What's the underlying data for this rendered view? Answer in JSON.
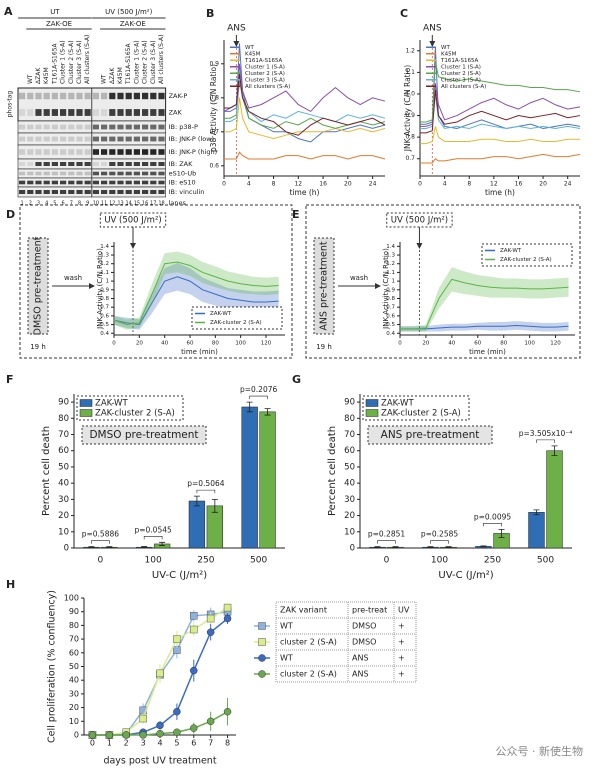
{
  "panel_a": {
    "panel": "A",
    "groups": [
      "UT",
      "UV (500 J/m²)"
    ],
    "overexpression": [
      "ZAK-OE",
      "ZAK-OE"
    ],
    "lanes": [
      "WT",
      "ΔZAK",
      "K45M",
      "T161A-S165A",
      "Cluster 1 (S-A)",
      "Cluster 2 (S-A)",
      "Cluster 3 (S-A)",
      "All clusters (S-A)",
      "WT",
      "ΔZAK",
      "K45M",
      "T161A-S165A",
      "Cluster 1 (S-A)",
      "Cluster 2 (S-A)",
      "Cluster 3 (S-A)",
      "All clusters (S-A)"
    ],
    "side_label": "phos-tag",
    "rows": [
      "ZAK-P",
      "ZAK",
      "IB: p38-P",
      "IB: JNK-P (low)",
      "IB: JNK-P (high)",
      "IB: ZAK",
      "eS10-Ub",
      "IB: eS10",
      "IB: vinculin"
    ],
    "lanes_label": "lanes",
    "lane_numbers": [
      "1",
      "2",
      "3",
      "4",
      "5",
      "6",
      "7",
      "8",
      "9",
      "10",
      "11",
      "12",
      "13",
      "14",
      "15",
      "16",
      "17",
      "18"
    ]
  },
  "watermark": "公众号 · 新使生物",
  "chart_data": [
    {
      "type": "line",
      "panel": "B",
      "ylabel": "p38 Activity (C/N Ratio)",
      "xlabel": "time (h)",
      "event_x": 2,
      "event_label": "ANS",
      "event_boxed": false,
      "legend": "upper left",
      "legend_frame": "none",
      "xlim": [
        0,
        26
      ],
      "ylim": [
        0.57,
        0.97
      ],
      "xticks": [
        0,
        4,
        8,
        12,
        16,
        20,
        24
      ],
      "yticks": [
        0.6,
        0.7,
        0.8,
        0.9
      ],
      "x": [
        0,
        1,
        2,
        2.5,
        3,
        4,
        6,
        8,
        10,
        12,
        14,
        16,
        18,
        20,
        22,
        24,
        26
      ],
      "series": [
        {
          "name": "WT",
          "color": "#4e74c4",
          "values": [
            0.76,
            0.76,
            0.77,
            0.96,
            0.82,
            0.74,
            0.72,
            0.7,
            0.7,
            0.68,
            0.67,
            0.7,
            0.7,
            0.71,
            0.72,
            0.71,
            0.72
          ]
        },
        {
          "name": "K45M",
          "color": "#e07b2b",
          "values": [
            0.62,
            0.62,
            0.62,
            0.64,
            0.63,
            0.62,
            0.62,
            0.62,
            0.63,
            0.63,
            0.62,
            0.63,
            0.63,
            0.62,
            0.63,
            0.63,
            0.62
          ]
        },
        {
          "name": "T161A-S165A",
          "color": "#e3b92f",
          "values": [
            0.7,
            0.7,
            0.71,
            0.8,
            0.74,
            0.7,
            0.69,
            0.68,
            0.69,
            0.7,
            0.7,
            0.7,
            0.71,
            0.7,
            0.71,
            0.7,
            0.71
          ]
        },
        {
          "name": "Cluster 1 (S-A)",
          "color": "#8a4fa8",
          "values": [
            0.76,
            0.77,
            0.78,
            0.9,
            0.82,
            0.77,
            0.78,
            0.8,
            0.82,
            0.78,
            0.76,
            0.8,
            0.83,
            0.8,
            0.78,
            0.8,
            0.79
          ]
        },
        {
          "name": "Cluster 2 (S-A)",
          "color": "#5aa64a",
          "values": [
            0.74,
            0.74,
            0.75,
            0.85,
            0.8,
            0.74,
            0.72,
            0.71,
            0.73,
            0.72,
            0.74,
            0.72,
            0.71,
            0.72,
            0.73,
            0.72,
            0.73
          ]
        },
        {
          "name": "Cluster 3 (S-A)",
          "color": "#5bb5d5",
          "values": [
            0.73,
            0.73,
            0.74,
            0.88,
            0.8,
            0.76,
            0.73,
            0.75,
            0.74,
            0.76,
            0.75,
            0.74,
            0.73,
            0.75,
            0.74,
            0.75,
            0.74
          ]
        },
        {
          "name": "All clusters (S-A)",
          "color": "#7a1f2a",
          "values": [
            0.77,
            0.77,
            0.78,
            0.87,
            0.8,
            0.76,
            0.74,
            0.73,
            0.7,
            0.69,
            0.72,
            0.74,
            0.73,
            0.72,
            0.73,
            0.74,
            0.72
          ]
        }
      ]
    },
    {
      "type": "line",
      "panel": "C",
      "ylabel": "JNK Activity (C/N Ratio)",
      "xlabel": "time (h)",
      "event_x": 2,
      "event_label": "ANS",
      "event_boxed": false,
      "legend": "upper left",
      "legend_frame": "none",
      "xlim": [
        0,
        26
      ],
      "ylim": [
        0.62,
        1.25
      ],
      "xticks": [
        0,
        4,
        8,
        12,
        16,
        20,
        24
      ],
      "yticks": [
        0.7,
        0.8,
        0.9,
        {
          "value": 1,
          "label": "1.0"
        },
        1.1,
        1.2
      ],
      "x": [
        0,
        1,
        2,
        2.5,
        3,
        4,
        6,
        8,
        10,
        12,
        14,
        16,
        18,
        20,
        22,
        24,
        26
      ],
      "series": [
        {
          "name": "WT",
          "color": "#4e74c4",
          "values": [
            0.86,
            0.86,
            0.87,
            1.22,
            0.9,
            0.85,
            0.84,
            0.86,
            0.88,
            0.86,
            0.84,
            0.85,
            0.86,
            0.84,
            0.85,
            0.86,
            0.85
          ]
        },
        {
          "name": "K45M",
          "color": "#e07b2b",
          "values": [
            0.68,
            0.68,
            0.68,
            0.7,
            0.69,
            0.69,
            0.7,
            0.7,
            0.7,
            0.71,
            0.71,
            0.7,
            0.71,
            0.72,
            0.71,
            0.71,
            0.72
          ]
        },
        {
          "name": "T161A-S165A",
          "color": "#e3b92f",
          "values": [
            0.77,
            0.77,
            0.78,
            0.85,
            0.8,
            0.78,
            0.78,
            0.78,
            0.79,
            0.79,
            0.78,
            0.78,
            0.79,
            0.78,
            0.78,
            0.79,
            0.79
          ]
        },
        {
          "name": "Cluster 1 (S-A)",
          "color": "#8a4fa8",
          "values": [
            0.85,
            0.85,
            0.86,
            1.05,
            0.95,
            0.88,
            0.9,
            0.93,
            0.96,
            0.98,
            0.95,
            0.93,
            0.96,
            0.98,
            0.95,
            0.93,
            0.94
          ]
        },
        {
          "name": "Cluster 2 (S-A)",
          "color": "#5aa64a",
          "values": [
            0.87,
            0.87,
            0.88,
            1.15,
            1.08,
            1.07,
            1.06,
            1.07,
            1.06,
            1.05,
            1.04,
            1.04,
            1.03,
            1.03,
            1.02,
            1.02,
            1.01
          ]
        },
        {
          "name": "Cluster 3 (S-A)",
          "color": "#5bb5d5",
          "values": [
            0.84,
            0.84,
            0.85,
            1.0,
            0.88,
            0.84,
            0.85,
            0.84,
            0.86,
            0.85,
            0.84,
            0.85,
            0.84,
            0.85,
            0.84,
            0.85,
            0.84
          ]
        },
        {
          "name": "All clusters (S-A)",
          "color": "#7a1f2a",
          "values": [
            0.82,
            0.82,
            0.83,
            1.02,
            0.9,
            0.86,
            0.87,
            0.9,
            0.92,
            0.9,
            0.88,
            0.9,
            0.89,
            0.9,
            0.91,
            0.89,
            0.9
          ]
        }
      ]
    },
    {
      "type": "line",
      "panel": "D",
      "ylabel": "JNK Activity (C/N Ratio)",
      "xlabel": "time (min)",
      "pretreatment": "DMSO pre-treatment",
      "wash_label": "wash",
      "duration": "19 h",
      "event_x": 15,
      "event_label": "UV (500 J/m²)",
      "event_boxed": true,
      "legend": "lower right",
      "legend_frame": "dashed",
      "xlim": [
        0,
        135
      ],
      "ylim": [
        0.38,
        1.45
      ],
      "xticks": [
        0,
        20,
        40,
        60,
        80,
        100,
        120
      ],
      "yticks": [
        0.4,
        0.5,
        0.6,
        0.7,
        0.8,
        0.9,
        1,
        1.1,
        1.2,
        1.3,
        1.4
      ],
      "x": [
        0,
        10,
        20,
        30,
        40,
        50,
        60,
        70,
        80,
        90,
        100,
        110,
        120,
        130
      ],
      "series": [
        {
          "name": "ZAK-WT",
          "color": "#3a6bc4",
          "values": [
            0.55,
            0.52,
            0.5,
            0.75,
            1.0,
            1.05,
            1.0,
            0.9,
            0.85,
            0.8,
            0.78,
            0.76,
            0.76,
            0.77
          ],
          "errors": [
            0.05,
            0.06,
            0.06,
            0.12,
            0.15,
            0.16,
            0.15,
            0.14,
            0.13,
            0.12,
            0.12,
            0.12,
            0.12,
            0.12
          ]
        },
        {
          "name": "ZAK-cluster 2 (S-A)",
          "color": "#5ab547",
          "values": [
            0.55,
            0.5,
            0.52,
            0.85,
            1.2,
            1.22,
            1.18,
            1.1,
            1.05,
            1.0,
            0.97,
            0.95,
            0.94,
            0.95
          ],
          "errors": [
            0.05,
            0.06,
            0.06,
            0.12,
            0.12,
            0.12,
            0.12,
            0.12,
            0.12,
            0.11,
            0.11,
            0.1,
            0.1,
            0.1
          ]
        }
      ]
    },
    {
      "type": "line",
      "panel": "E",
      "ylabel": "JNK Activity (C/N Ratio)",
      "xlabel": "time (min)",
      "pretreatment": "ANS pre-treatment",
      "wash_label": "wash",
      "duration": "19 h",
      "event_x": 15,
      "event_label": "UV (500 J/m²)",
      "event_boxed": true,
      "legend": "upper right",
      "legend_frame": "dashed",
      "xlim": [
        0,
        135
      ],
      "ylim": [
        0.38,
        1.45
      ],
      "xticks": [
        0,
        20,
        40,
        60,
        80,
        100,
        120
      ],
      "yticks": [
        0.4,
        0.5,
        0.6,
        0.7,
        0.8,
        0.9,
        1,
        1.1,
        1.2,
        1.3,
        1.4
      ],
      "x": [
        0,
        10,
        20,
        30,
        40,
        50,
        60,
        70,
        80,
        90,
        100,
        110,
        120,
        130
      ],
      "series": [
        {
          "name": "ZAK-WT",
          "color": "#3a6bc4",
          "values": [
            0.45,
            0.45,
            0.45,
            0.46,
            0.47,
            0.47,
            0.48,
            0.48,
            0.48,
            0.49,
            0.48,
            0.47,
            0.47,
            0.48
          ],
          "errors": [
            0.03,
            0.03,
            0.03,
            0.04,
            0.04,
            0.04,
            0.04,
            0.05,
            0.05,
            0.05,
            0.05,
            0.05,
            0.05,
            0.05
          ]
        },
        {
          "name": "ZAK-cluster 2 (S-A)",
          "color": "#5ab547",
          "values": [
            0.45,
            0.45,
            0.46,
            0.8,
            1.02,
            0.98,
            0.95,
            0.93,
            0.92,
            0.92,
            0.91,
            0.91,
            0.92,
            0.93
          ],
          "errors": [
            0.03,
            0.03,
            0.04,
            0.12,
            0.14,
            0.13,
            0.12,
            0.12,
            0.11,
            0.11,
            0.11,
            0.11,
            0.11,
            0.11
          ]
        }
      ]
    },
    {
      "type": "bar",
      "panel": "F",
      "ylabel": "Percent cell death",
      "xlabel": "UV-C (J/m²)",
      "annotation": "DMSO pre-treatment",
      "legend": "upper left",
      "legend_frame": "dashed",
      "categories": [
        "0",
        "100",
        "250",
        "500"
      ],
      "ylim": [
        0,
        95
      ],
      "yticks": [
        0,
        10,
        20,
        30,
        40,
        50,
        60,
        70,
        80,
        90
      ],
      "p_labels": [
        "p=0.5886",
        "p=0.0545",
        "p=0.5064",
        "p=0.2076"
      ],
      "series": [
        {
          "name": "ZAK-WT",
          "color": "#2f6db5",
          "values": [
            0.5,
            0.5,
            29,
            87
          ],
          "errors": [
            0.3,
            0.4,
            3,
            3
          ]
        },
        {
          "name": "ZAK-cluster 2 (S-A)",
          "color": "#6cb047",
          "values": [
            0.5,
            2.5,
            26,
            84
          ],
          "errors": [
            0.3,
            1,
            4,
            2
          ]
        }
      ]
    },
    {
      "type": "bar",
      "panel": "G",
      "ylabel": "Percent cell death",
      "xlabel": "UV-C (J/m²)",
      "annotation": "ANS pre-treatment",
      "legend": "upper left",
      "legend_frame": "dashed",
      "categories": [
        "0",
        "100",
        "250",
        "500"
      ],
      "ylim": [
        0,
        95
      ],
      "yticks": [
        0,
        10,
        20,
        30,
        40,
        50,
        60,
        70,
        80,
        90
      ],
      "p_labels": [
        "p=0.2851",
        "p=0.2585",
        "p=0.0095",
        "p=3.505x10⁻⁴"
      ],
      "series": [
        {
          "name": "ZAK-WT",
          "color": "#2f6db5",
          "values": [
            0.5,
            0.5,
            1,
            22
          ],
          "errors": [
            0.3,
            0.3,
            0.3,
            1.5
          ]
        },
        {
          "name": "ZAK-cluster 2 (S-A)",
          "color": "#6cb047",
          "values": [
            0.5,
            0.5,
            9,
            60
          ],
          "errors": [
            0.3,
            0.3,
            2.5,
            3
          ]
        }
      ]
    },
    {
      "type": "line",
      "panel": "H",
      "ylabel": "Cell proliferation (% confluency)",
      "xlabel": "days post UV treatment",
      "xlim": [
        -0.5,
        8.5
      ],
      "ylim": [
        0,
        100
      ],
      "xticks": [
        0,
        1,
        2,
        3,
        4,
        5,
        6,
        7,
        8
      ],
      "yticks": [
        0,
        10,
        20,
        30,
        40,
        50,
        60,
        70,
        80,
        90,
        100
      ],
      "x": [
        0,
        1,
        2,
        3,
        4,
        5,
        6,
        7,
        8
      ],
      "legend_table": {
        "headers": [
          "ZAK variant",
          "pre-treat",
          "UV"
        ],
        "rows": [
          [
            "WT",
            "DMSO",
            "+"
          ],
          [
            "cluster 2 (S-A)",
            "DMSO",
            "+"
          ],
          [
            "WT",
            "ANS",
            "+"
          ],
          [
            "cluster 2 (S-A)",
            "ANS",
            "+"
          ]
        ]
      },
      "series": [
        {
          "color": "#8fb1e0",
          "marker": "square",
          "values": [
            0,
            0,
            1,
            18,
            44,
            62,
            87,
            88,
            90
          ],
          "errors": [
            0,
            0,
            1,
            5,
            6,
            6,
            4,
            5,
            4
          ]
        },
        {
          "color": "#d9ee8a",
          "marker": "square",
          "values": [
            0,
            0,
            2,
            12,
            45,
            70,
            77,
            85,
            93
          ],
          "errors": [
            0,
            0,
            1,
            4,
            7,
            6,
            5,
            5,
            3
          ]
        },
        {
          "color": "#3a6bc4",
          "marker": "circle",
          "values": [
            0,
            0,
            0,
            2,
            7,
            17,
            47,
            75,
            85
          ],
          "errors": [
            0,
            0,
            0,
            1,
            3,
            6,
            8,
            6,
            4
          ]
        },
        {
          "color": "#6aa84f",
          "marker": "circle",
          "values": [
            0,
            0,
            0,
            0,
            1,
            2,
            5,
            10,
            17
          ],
          "errors": [
            0,
            0,
            0,
            0,
            1,
            2,
            4,
            7,
            10
          ]
        }
      ]
    }
  ]
}
